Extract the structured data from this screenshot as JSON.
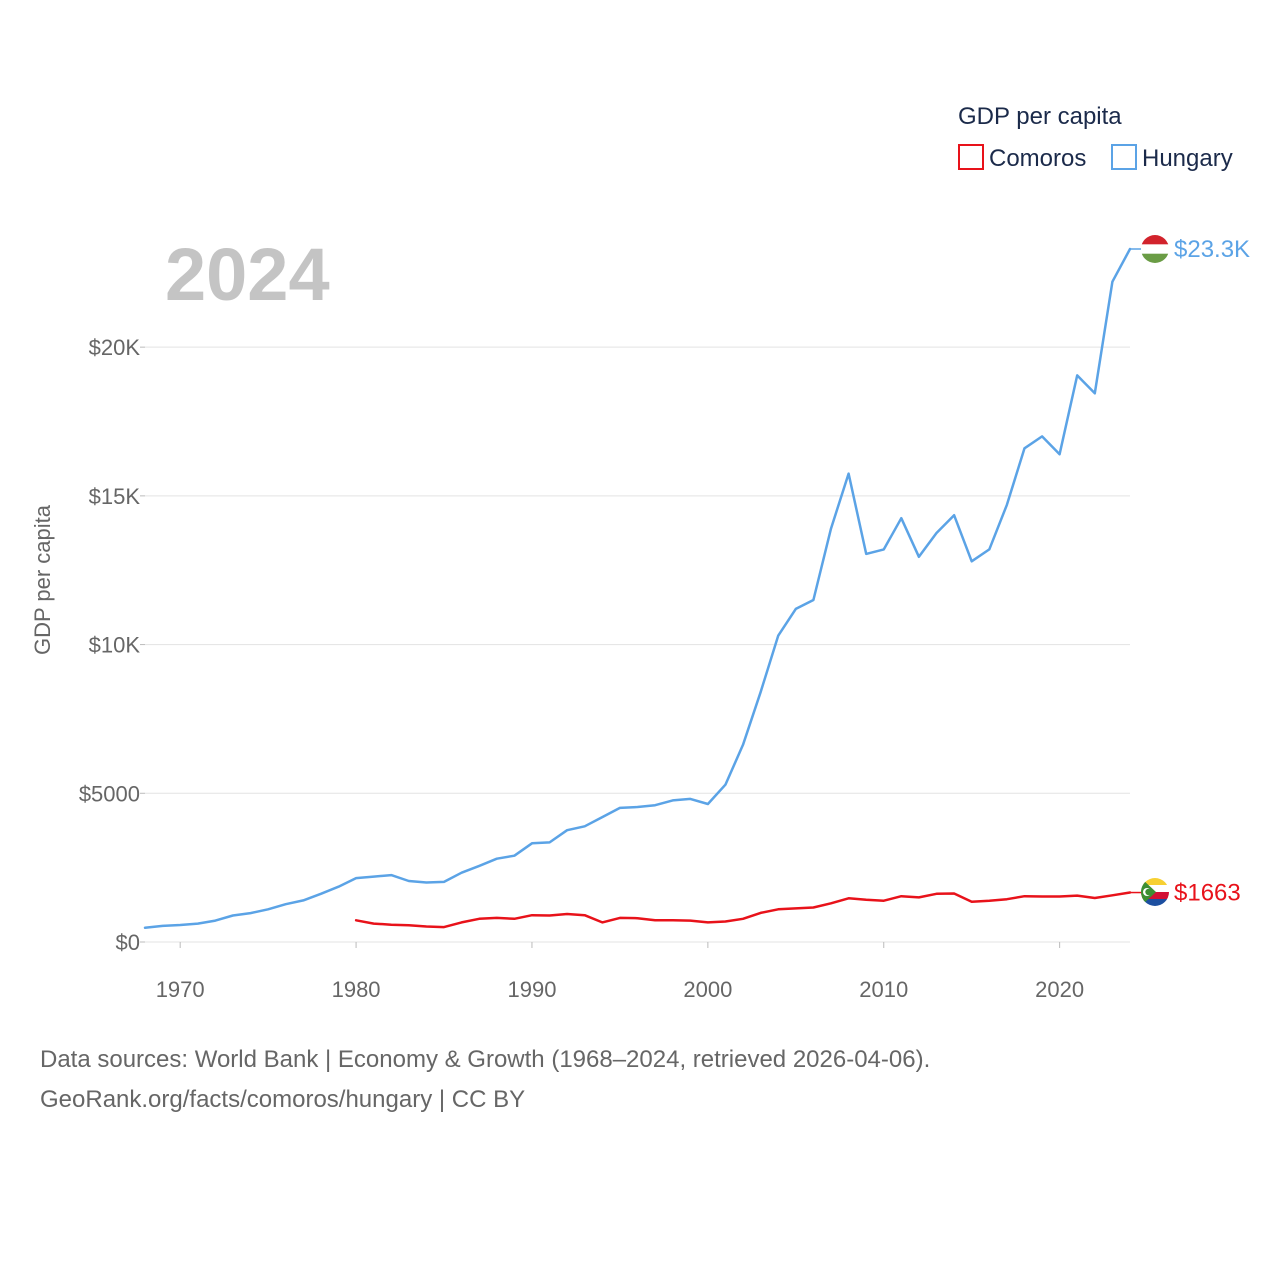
{
  "chart_data": {
    "type": "line",
    "title": "",
    "year_label": "2024",
    "ylabel": "GDP per capita",
    "xlabel": "",
    "xlim": [
      1968,
      2024
    ],
    "ylim": [
      0,
      23300
    ],
    "x_ticks": [
      1970,
      1980,
      1990,
      2000,
      2010,
      2020
    ],
    "y_ticks": [
      {
        "value": 0,
        "label": "$0"
      },
      {
        "value": 5000,
        "label": "$5000"
      },
      {
        "value": 10000,
        "label": "$10K"
      },
      {
        "value": 15000,
        "label": "$15K"
      },
      {
        "value": 20000,
        "label": "$20K"
      }
    ],
    "legend": {
      "title": "GDP per capita",
      "position": "top-right"
    },
    "series": [
      {
        "name": "Comoros",
        "color": "#e8121a",
        "end_label": "$1663",
        "flag": "comoros-flag",
        "x": [
          1980,
          1981,
          1982,
          1983,
          1984,
          1985,
          1986,
          1987,
          1988,
          1989,
          1990,
          1991,
          1992,
          1993,
          1994,
          1995,
          1996,
          1997,
          1998,
          1999,
          2000,
          2001,
          2002,
          2003,
          2004,
          2005,
          2006,
          2007,
          2008,
          2009,
          2010,
          2011,
          2012,
          2013,
          2014,
          2015,
          2016,
          2017,
          2018,
          2019,
          2020,
          2021,
          2022,
          2023,
          2024
        ],
        "values": [
          730,
          620,
          580,
          560,
          520,
          500,
          660,
          780,
          810,
          780,
          900,
          890,
          940,
          900,
          660,
          810,
          800,
          730,
          730,
          720,
          660,
          690,
          780,
          980,
          1100,
          1130,
          1160,
          1300,
          1470,
          1420,
          1390,
          1540,
          1500,
          1620,
          1630,
          1350,
          1390,
          1440,
          1540,
          1530,
          1530,
          1560,
          1480,
          1570,
          1663
        ]
      },
      {
        "name": "Hungary",
        "color": "#5ba3e6",
        "end_label": "$23.3K",
        "flag": "hungary-flag",
        "x": [
          1968,
          1969,
          1970,
          1971,
          1972,
          1973,
          1974,
          1975,
          1976,
          1977,
          1978,
          1979,
          1980,
          1981,
          1982,
          1983,
          1984,
          1985,
          1986,
          1987,
          1988,
          1989,
          1990,
          1991,
          1992,
          1993,
          1994,
          1995,
          1996,
          1997,
          1998,
          1999,
          2000,
          2001,
          2002,
          2003,
          2004,
          2005,
          2006,
          2007,
          2008,
          2009,
          2010,
          2011,
          2012,
          2013,
          2014,
          2015,
          2016,
          2017,
          2018,
          2019,
          2020,
          2021,
          2022,
          2023,
          2024
        ],
        "values": [
          480,
          540,
          570,
          620,
          720,
          890,
          970,
          1100,
          1270,
          1400,
          1620,
          1860,
          2150,
          2200,
          2250,
          2050,
          2000,
          2020,
          2330,
          2560,
          2800,
          2900,
          3320,
          3350,
          3760,
          3890,
          4200,
          4510,
          4540,
          4600,
          4760,
          4810,
          4640,
          5290,
          6630,
          8400,
          10300,
          11200,
          11500,
          13900,
          15750,
          13050,
          13200,
          14250,
          12950,
          13750,
          14350,
          12800,
          13200,
          14700,
          16600,
          17000,
          16400,
          19050,
          18450,
          22200,
          23300
        ]
      }
    ]
  },
  "footer": {
    "line1": "Data sources: World Bank | Economy & Growth (1968–2024, retrieved 2026-04-06).",
    "line2": "GeoRank.org/facts/comoros/hungary | CC BY"
  }
}
